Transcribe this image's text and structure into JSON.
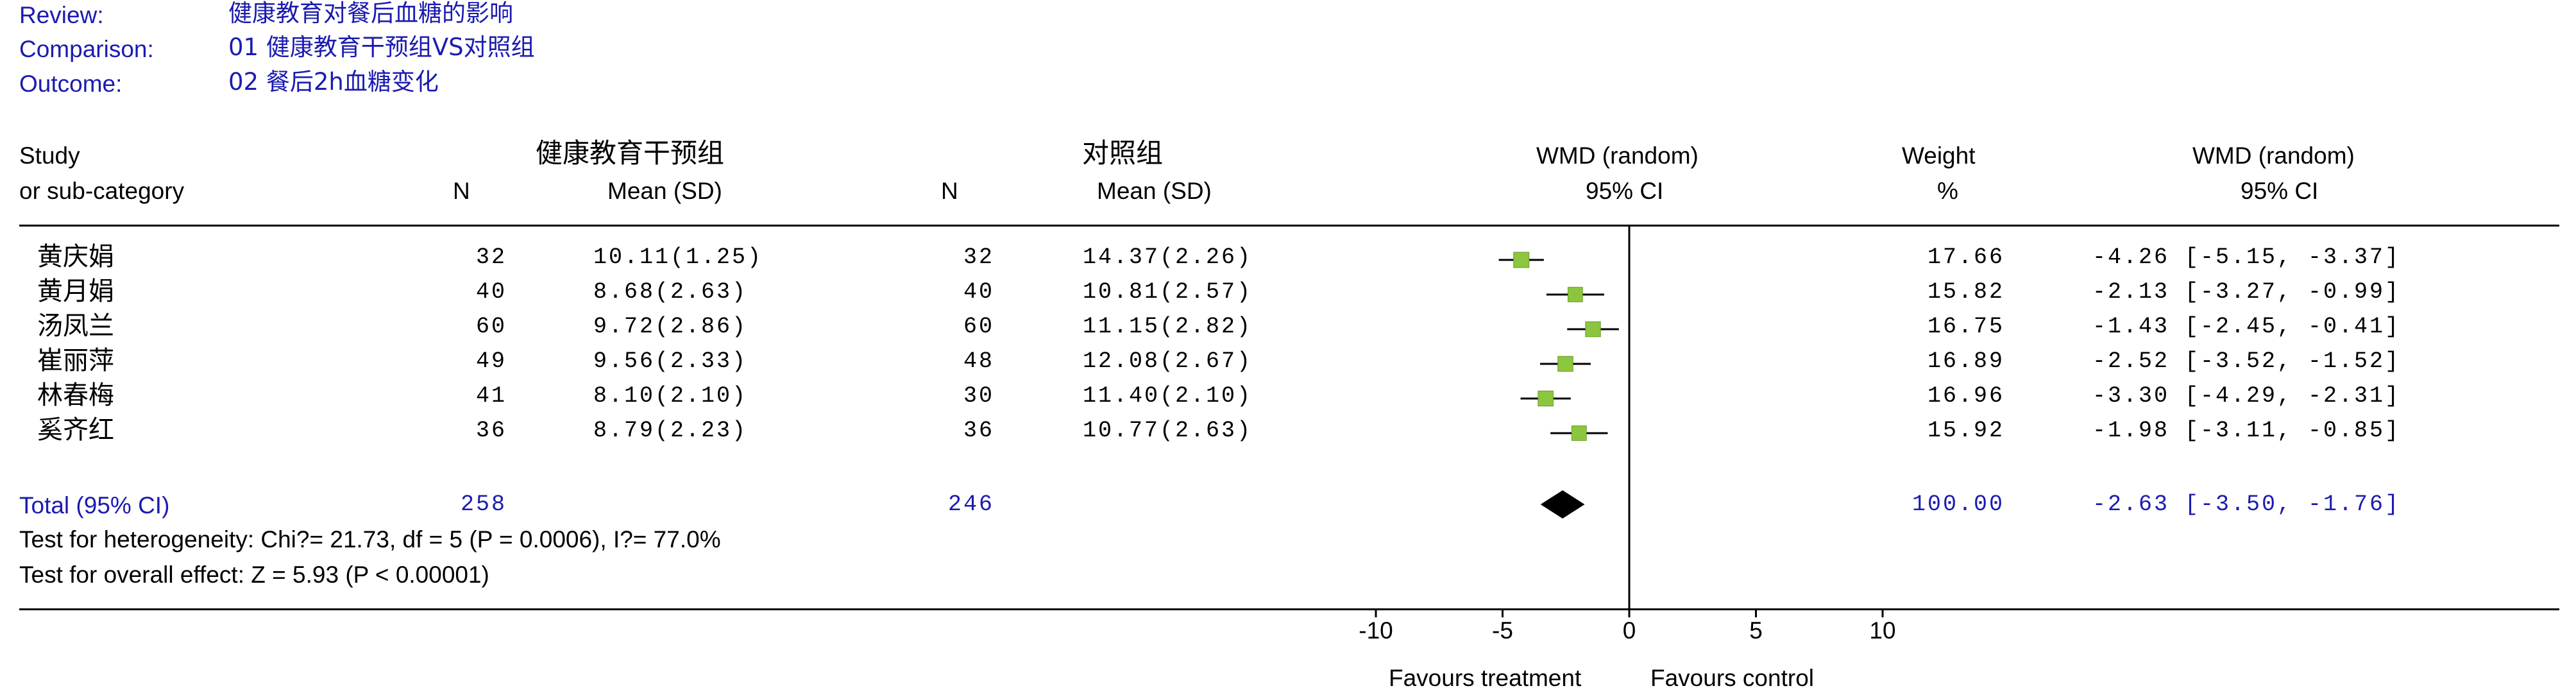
{
  "meta": {
    "review_label": "Review:",
    "review_value": "健康教育对餐后血糖的影响",
    "comparison_label": "Comparison:",
    "comparison_value": "01 健康教育干预组VS对照组",
    "outcome_label": "Outcome:",
    "outcome_value": "02 餐后2h血糖变化"
  },
  "headers": {
    "study_1": "Study",
    "study_2": "or sub-category",
    "group1": "健康教育干预组",
    "group2": "对照组",
    "n": "N",
    "mean_sd": "Mean (SD)",
    "wmd_1": "WMD (random)",
    "wmd_2": "95% CI",
    "weight_1": "Weight",
    "weight_2": "%",
    "ci_1": "WMD (random)",
    "ci_2": "95% CI"
  },
  "studies": [
    {
      "name": "黄庆娟",
      "n1": "32",
      "m1": "10.11(1.25)",
      "n2": "32",
      "m2": "14.37(2.26)",
      "weight": "17.66",
      "ci": "-4.26 [-5.15, -3.37]"
    },
    {
      "name": "黄月娟",
      "n1": "40",
      "m1": "8.68(2.63)",
      "n2": "40",
      "m2": "10.81(2.57)",
      "weight": "15.82",
      "ci": "-2.13 [-3.27, -0.99]"
    },
    {
      "name": "汤凤兰",
      "n1": "60",
      "m1": "9.72(2.86)",
      "n2": "60",
      "m2": "11.15(2.82)",
      "weight": "16.75",
      "ci": "-1.43 [-2.45, -0.41]"
    },
    {
      "name": "崔丽萍",
      "n1": "49",
      "m1": "9.56(2.33)",
      "n2": "48",
      "m2": "12.08(2.67)",
      "weight": "16.89",
      "ci": "-2.52 [-3.52, -1.52]"
    },
    {
      "name": "林春梅",
      "n1": "41",
      "m1": "8.10(2.10)",
      "n2": "30",
      "m2": "11.40(2.10)",
      "weight": "16.96",
      "ci": "-3.30 [-4.29, -2.31]"
    },
    {
      "name": "奚齐红",
      "n1": "36",
      "m1": "8.79(2.23)",
      "n2": "36",
      "m2": "10.77(2.63)",
      "weight": "15.92",
      "ci": "-1.98 [-3.11, -0.85]"
    }
  ],
  "total": {
    "label": "Total (95% CI)",
    "n1": "258",
    "n2": "246",
    "weight": "100.00",
    "ci": "-2.63 [-3.50, -1.76]"
  },
  "tests": {
    "heterogeneity": "Test for heterogeneity: Chi?= 21.73, df = 5 (P = 0.0006), I?= 77.0%",
    "overall": "Test for overall effect: Z = 5.93 (P < 0.00001)"
  },
  "axis": {
    "ticks": [
      "-10",
      "-5",
      "0",
      "5",
      "10"
    ],
    "left_label": "Favours treatment",
    "right_label": "Favours control"
  },
  "colors": {
    "text_blue": "#1b1bb0",
    "square": "#8cc63f",
    "line": "#000000"
  },
  "chart_data": {
    "type": "forest",
    "xlim": [
      -10,
      10
    ],
    "x_ticks": [
      -10,
      -5,
      0,
      5,
      10
    ],
    "series": [
      {
        "study": "黄庆娟",
        "est": -4.26,
        "lo": -5.15,
        "hi": -3.37,
        "weight": 17.66
      },
      {
        "study": "黄月娟",
        "est": -2.13,
        "lo": -3.27,
        "hi": -0.99,
        "weight": 15.82
      },
      {
        "study": "汤凤兰",
        "est": -1.43,
        "lo": -2.45,
        "hi": -0.41,
        "weight": 16.75
      },
      {
        "study": "崔丽萍",
        "est": -2.52,
        "lo": -3.52,
        "hi": -1.52,
        "weight": 16.89
      },
      {
        "study": "林春梅",
        "est": -3.3,
        "lo": -4.29,
        "hi": -2.31,
        "weight": 16.96
      },
      {
        "study": "奚齐红",
        "est": -1.98,
        "lo": -3.11,
        "hi": -0.85,
        "weight": 15.92
      }
    ],
    "pooled": {
      "est": -2.63,
      "lo": -3.5,
      "hi": -1.76
    }
  }
}
